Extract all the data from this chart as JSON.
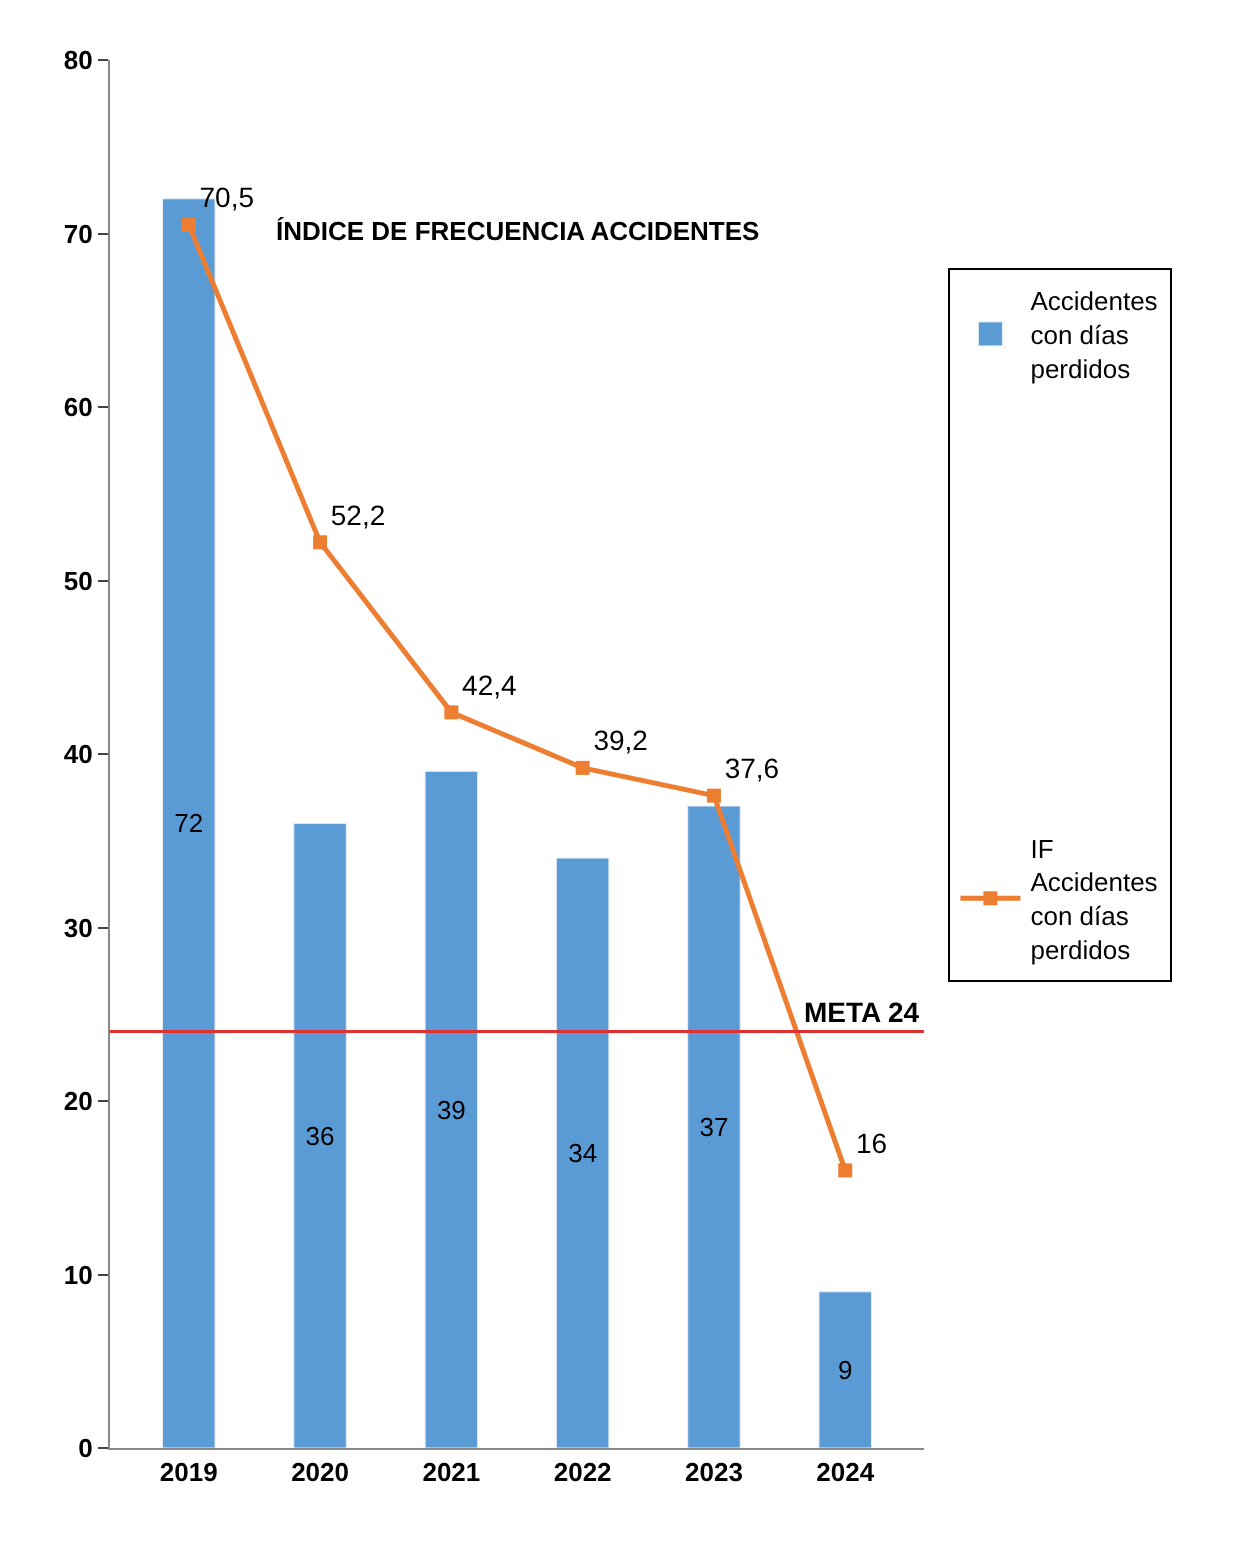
{
  "chart_data": {
    "type": "bar",
    "title": "ÍNDICE DE FRECUENCIA ACCIDENTES",
    "categories": [
      "2019",
      "2020",
      "2021",
      "2022",
      "2023",
      "2024"
    ],
    "series": [
      {
        "name": "Accidentes con días perdidos",
        "color": "#5b9bd5",
        "values": [
          72,
          36,
          39,
          34,
          37,
          9
        ]
      },
      {
        "name": "IF Accidentes con días perdidos",
        "type": "line",
        "color": "#ed7d31",
        "values": [
          70.5,
          52.2,
          42.4,
          39.2,
          37.6,
          16
        ],
        "value_labels": [
          "70,5",
          "52,2",
          "42,4",
          "39,2",
          "37,6",
          "16"
        ]
      }
    ],
    "ylim": [
      0,
      80
    ],
    "yticks": [
      0,
      10,
      20,
      30,
      40,
      50,
      60,
      70,
      80
    ],
    "ref_lines": [
      {
        "axis": "y",
        "value": 24,
        "label": "META 24",
        "color": "#e03030"
      }
    ],
    "data_labels": true,
    "legend": "right",
    "marker": "square",
    "line_style": "solid"
  }
}
